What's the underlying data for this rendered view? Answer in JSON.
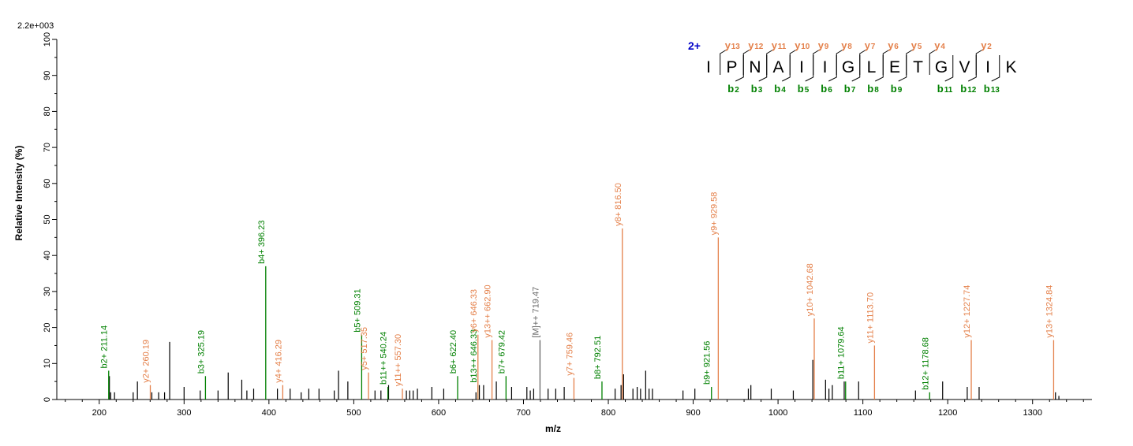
{
  "chart_data": {
    "type": "bar",
    "title": "",
    "xlabel": "m/z",
    "ylabel": "Relative  Intensity (%)",
    "intensity_scale_label": "2.2e+003",
    "xlim": [
      150,
      1370
    ],
    "ylim": [
      0,
      100
    ],
    "x_ticks": [
      200,
      300,
      400,
      500,
      600,
      700,
      800,
      900,
      1000,
      1100,
      1200,
      1300
    ],
    "y_ticks": [
      0,
      10,
      20,
      30,
      40,
      50,
      60,
      70,
      80,
      90,
      100
    ],
    "grid": false,
    "colors": {
      "b": "#008000",
      "y": "#e4804a",
      "precursor": "#666666",
      "other": "#000000",
      "charge": "#0000c8"
    },
    "annotated_peaks": [
      {
        "label": "b2+ 211.14",
        "mz": 211.14,
        "intensity": 8,
        "series": "b"
      },
      {
        "label": "y2+ 260.19",
        "mz": 260.19,
        "intensity": 4,
        "series": "y"
      },
      {
        "label": "b3+ 325.19",
        "mz": 325.19,
        "intensity": 6.5,
        "series": "b"
      },
      {
        "label": "b4+ 396.23",
        "mz": 396.23,
        "intensity": 37,
        "series": "b"
      },
      {
        "label": "y4+ 416.29",
        "mz": 416.29,
        "intensity": 4,
        "series": "y"
      },
      {
        "label": "b5+ 509.31",
        "mz": 509.31,
        "intensity": 18,
        "series": "b"
      },
      {
        "label": "y5+ 517.35",
        "mz": 517.35,
        "intensity": 7.5,
        "series": "y"
      },
      {
        "label": "b11++ 540.24",
        "mz": 540.24,
        "intensity": 3.5,
        "series": "b"
      },
      {
        "label": "y11++ 557.30",
        "mz": 557.3,
        "intensity": 3,
        "series": "y"
      },
      {
        "label": "b6+ 622.40",
        "mz": 622.4,
        "intensity": 6.5,
        "series": "b"
      },
      {
        "label": "b13++ 646.33",
        "mz": 646.33,
        "intensity": 4,
        "series": "b"
      },
      {
        "label": "y6+ 646.33",
        "mz": 646.33,
        "intensity": 18,
        "series": "y"
      },
      {
        "label": "y13++ 662.90",
        "mz": 662.9,
        "intensity": 16.5,
        "series": "y"
      },
      {
        "label": "b7+ 679.42",
        "mz": 679.42,
        "intensity": 6.5,
        "series": "b"
      },
      {
        "label": "[M]++ 719.47",
        "mz": 719.47,
        "intensity": 16.5,
        "series": "precursor"
      },
      {
        "label": "y7+ 759.46",
        "mz": 759.46,
        "intensity": 6,
        "series": "y"
      },
      {
        "label": "b8+ 792.51",
        "mz": 792.51,
        "intensity": 5,
        "series": "b"
      },
      {
        "label": "y8+ 816.50",
        "mz": 816.5,
        "intensity": 47.5,
        "series": "y"
      },
      {
        "label": "b9+ 921.56",
        "mz": 921.56,
        "intensity": 3.5,
        "series": "b"
      },
      {
        "label": "y9+ 929.58",
        "mz": 929.58,
        "intensity": 45,
        "series": "y"
      },
      {
        "label": "y10+ 1042.68",
        "mz": 1042.68,
        "intensity": 22.5,
        "series": "y"
      },
      {
        "label": "b11+ 1079.64",
        "mz": 1079.64,
        "intensity": 5,
        "series": "b"
      },
      {
        "label": "y11+ 1113.70",
        "mz": 1113.7,
        "intensity": 15,
        "series": "y"
      },
      {
        "label": "b12+ 1178.68",
        "mz": 1178.68,
        "intensity": 2,
        "series": "b"
      },
      {
        "label": "y12+ 1227.74",
        "mz": 1227.74,
        "intensity": 16.5,
        "series": "y"
      },
      {
        "label": "y13+ 1324.84",
        "mz": 1324.84,
        "intensity": 16.5,
        "series": "y"
      }
    ],
    "unlabeled_peaks": [
      {
        "mz": 212,
        "intensity": 6.5
      },
      {
        "mz": 213.5,
        "intensity": 2
      },
      {
        "mz": 218,
        "intensity": 2
      },
      {
        "mz": 240,
        "intensity": 2
      },
      {
        "mz": 245,
        "intensity": 5
      },
      {
        "mz": 262,
        "intensity": 2
      },
      {
        "mz": 270,
        "intensity": 2
      },
      {
        "mz": 277,
        "intensity": 2
      },
      {
        "mz": 283,
        "intensity": 16
      },
      {
        "mz": 300,
        "intensity": 3.5
      },
      {
        "mz": 319,
        "intensity": 2.5
      },
      {
        "mz": 340,
        "intensity": 2.5
      },
      {
        "mz": 352,
        "intensity": 7.5
      },
      {
        "mz": 368,
        "intensity": 5.5
      },
      {
        "mz": 374,
        "intensity": 2.5
      },
      {
        "mz": 382,
        "intensity": 3
      },
      {
        "mz": 410,
        "intensity": 3
      },
      {
        "mz": 425,
        "intensity": 3
      },
      {
        "mz": 438,
        "intensity": 2
      },
      {
        "mz": 447,
        "intensity": 3
      },
      {
        "mz": 459,
        "intensity": 3
      },
      {
        "mz": 477,
        "intensity": 2.5
      },
      {
        "mz": 482,
        "intensity": 8
      },
      {
        "mz": 493,
        "intensity": 5
      },
      {
        "mz": 525,
        "intensity": 2.5
      },
      {
        "mz": 532,
        "intensity": 2.5
      },
      {
        "mz": 541,
        "intensity": 4
      },
      {
        "mz": 562,
        "intensity": 2.5
      },
      {
        "mz": 566,
        "intensity": 2.5
      },
      {
        "mz": 570,
        "intensity": 2.5
      },
      {
        "mz": 575,
        "intensity": 3
      },
      {
        "mz": 592,
        "intensity": 3.5
      },
      {
        "mz": 606,
        "intensity": 3
      },
      {
        "mz": 644,
        "intensity": 2
      },
      {
        "mz": 648,
        "intensity": 4
      },
      {
        "mz": 653,
        "intensity": 4
      },
      {
        "mz": 668,
        "intensity": 5
      },
      {
        "mz": 686,
        "intensity": 3.5
      },
      {
        "mz": 704,
        "intensity": 3.5
      },
      {
        "mz": 708,
        "intensity": 2.5
      },
      {
        "mz": 712,
        "intensity": 3
      },
      {
        "mz": 729,
        "intensity": 3
      },
      {
        "mz": 738,
        "intensity": 3
      },
      {
        "mz": 748,
        "intensity": 3.5
      },
      {
        "mz": 808,
        "intensity": 3
      },
      {
        "mz": 815,
        "intensity": 4
      },
      {
        "mz": 818,
        "intensity": 7
      },
      {
        "mz": 829,
        "intensity": 3
      },
      {
        "mz": 834,
        "intensity": 3.5
      },
      {
        "mz": 838,
        "intensity": 3
      },
      {
        "mz": 844,
        "intensity": 8
      },
      {
        "mz": 848,
        "intensity": 3
      },
      {
        "mz": 852,
        "intensity": 3
      },
      {
        "mz": 888,
        "intensity": 2.5
      },
      {
        "mz": 902,
        "intensity": 3
      },
      {
        "mz": 965,
        "intensity": 3
      },
      {
        "mz": 968,
        "intensity": 4
      },
      {
        "mz": 992,
        "intensity": 3
      },
      {
        "mz": 1018,
        "intensity": 2.5
      },
      {
        "mz": 1041,
        "intensity": 11
      },
      {
        "mz": 1056,
        "intensity": 5.5
      },
      {
        "mz": 1060,
        "intensity": 3
      },
      {
        "mz": 1064,
        "intensity": 4
      },
      {
        "mz": 1078,
        "intensity": 5
      },
      {
        "mz": 1095,
        "intensity": 5
      },
      {
        "mz": 1162,
        "intensity": 2.5
      },
      {
        "mz": 1194,
        "intensity": 5
      },
      {
        "mz": 1223,
        "intensity": 3.5
      },
      {
        "mz": 1237,
        "intensity": 3.5
      },
      {
        "mz": 1327,
        "intensity": 2
      },
      {
        "mz": 1331,
        "intensity": 1
      }
    ],
    "fragment_map": {
      "charge": "2+",
      "sequence": [
        "I",
        "P",
        "N",
        "A",
        "I",
        "I",
        "G",
        "L",
        "E",
        "T",
        "G",
        "V",
        "I",
        "K"
      ],
      "y_ions": [
        {
          "letter": "y",
          "num": "13",
          "after": 1
        },
        {
          "letter": "y",
          "num": "12",
          "after": 2
        },
        {
          "letter": "y",
          "num": "11",
          "after": 3
        },
        {
          "letter": "y",
          "num": "10",
          "after": 4
        },
        {
          "letter": "y",
          "num": "9",
          "after": 5
        },
        {
          "letter": "y",
          "num": "8",
          "after": 6
        },
        {
          "letter": "y",
          "num": "7",
          "after": 7
        },
        {
          "letter": "y",
          "num": "6",
          "after": 8
        },
        {
          "letter": "y",
          "num": "5",
          "after": 9
        },
        {
          "letter": "y",
          "num": "4",
          "after": 10
        },
        {
          "letter": "y",
          "num": "2",
          "after": 12
        }
      ],
      "b_ions": [
        {
          "letter": "b",
          "num": "2",
          "after": 2
        },
        {
          "letter": "b",
          "num": "3",
          "after": 3
        },
        {
          "letter": "b",
          "num": "4",
          "after": 4
        },
        {
          "letter": "b",
          "num": "5",
          "after": 5
        },
        {
          "letter": "b",
          "num": "6",
          "after": 6
        },
        {
          "letter": "b",
          "num": "7",
          "after": 7
        },
        {
          "letter": "b",
          "num": "8",
          "after": 8
        },
        {
          "letter": "b",
          "num": "9",
          "after": 9
        },
        {
          "letter": "b",
          "num": "11",
          "after": 11
        },
        {
          "letter": "b",
          "num": "12",
          "after": 12
        },
        {
          "letter": "b",
          "num": "13",
          "after": 13
        }
      ]
    }
  }
}
